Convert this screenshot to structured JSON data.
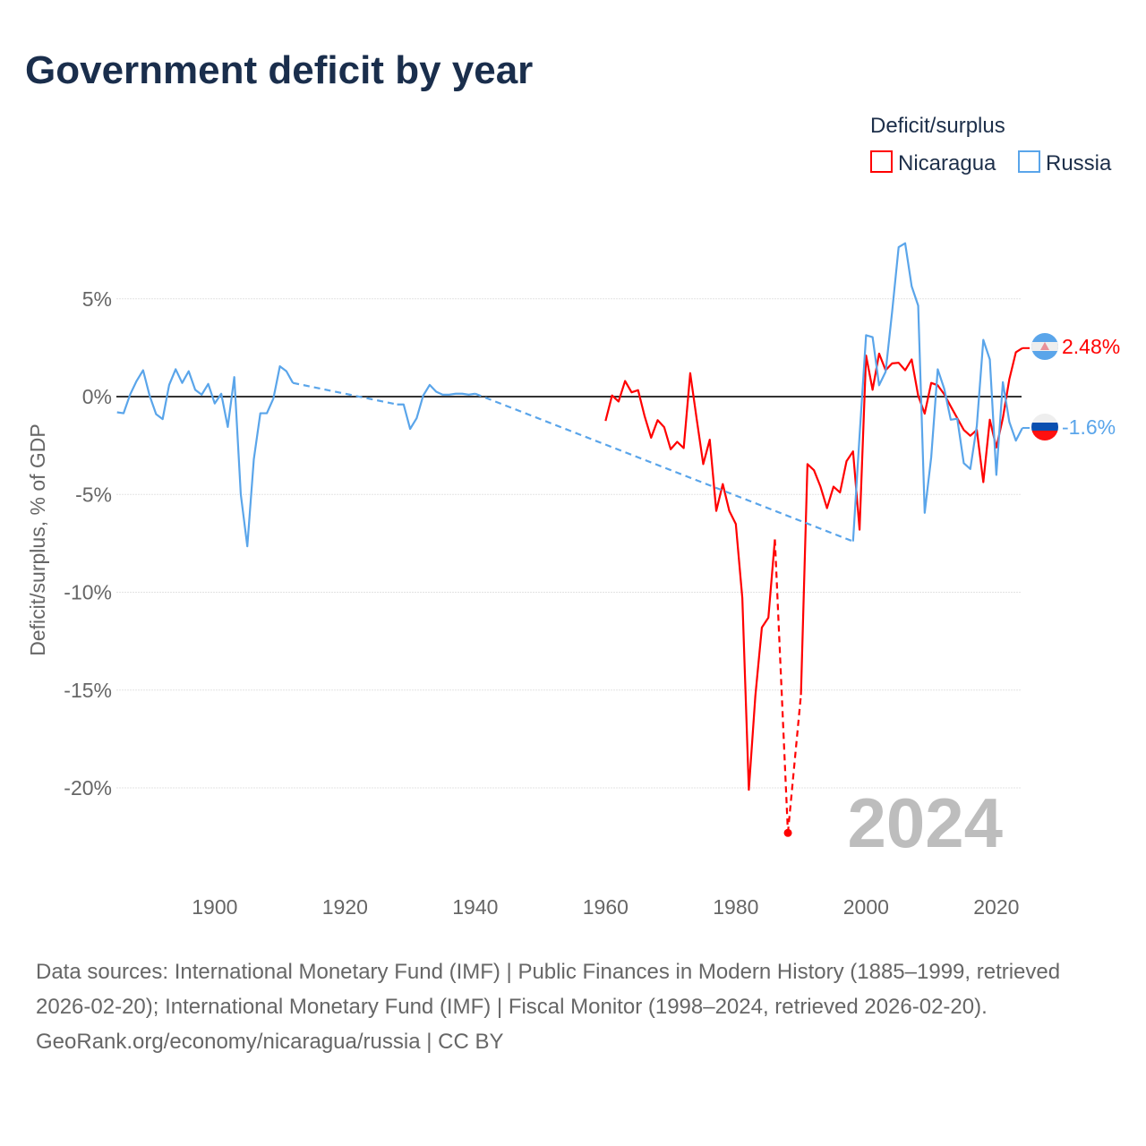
{
  "title": "Government deficit by year",
  "legend": {
    "title": "Deficit/surplus",
    "items": [
      {
        "label": "Nicaragua",
        "color": "#ff0000"
      },
      {
        "label": "Russia",
        "color": "#5aa5ea"
      }
    ]
  },
  "footer": {
    "sources": "Data sources: International Monetary Fund (IMF) | Public Finances in Modern History (1885–1999, retrieved 2026-02-20); International Monetary Fund (IMF) | Fiscal Monitor (1998–2024, retrieved 2026-02-20).",
    "credit": "GeoRank.org/economy/nicaragua/russia | CC BY"
  },
  "chart_data": {
    "type": "line",
    "title": "Government deficit by year",
    "xlabel": "",
    "ylabel": "Deficit/surplus, % of GDP",
    "xlim": [
      1884.9,
      2024.2
    ],
    "ylim": [
      -23.5,
      9
    ],
    "grid": true,
    "legend_position": "top-right",
    "current_year": "2024",
    "x_ticks": [
      {
        "value": 1900,
        "label": "1900"
      },
      {
        "value": 1920,
        "label": "1920"
      },
      {
        "value": 1940,
        "label": "1940"
      },
      {
        "value": 1960,
        "label": "1960"
      },
      {
        "value": 1980,
        "label": "1980"
      },
      {
        "value": 2000,
        "label": "2000"
      },
      {
        "value": 2020,
        "label": "2020"
      }
    ],
    "y_ticks": [
      {
        "value": 5,
        "label": "5%"
      },
      {
        "value": 0,
        "label": "0%"
      },
      {
        "value": -5,
        "label": "-5%"
      },
      {
        "value": -10,
        "label": "-10%"
      },
      {
        "value": -15,
        "label": "-15%"
      },
      {
        "value": -20,
        "label": "-20%"
      }
    ],
    "series": [
      {
        "name": "Nicaragua",
        "color": "#ff0000",
        "end_label": "2.48%",
        "flag": "nicaragua-flag",
        "points": [
          [
            1960,
            -1.24
          ],
          [
            1961,
            0.06
          ],
          [
            1962,
            -0.25
          ],
          [
            1963,
            0.8
          ],
          [
            1964,
            0.22
          ],
          [
            1965,
            0.33
          ],
          [
            1966,
            -1.0
          ],
          [
            1967,
            -2.1
          ],
          [
            1968,
            -1.2
          ],
          [
            1969,
            -1.56
          ],
          [
            1970,
            -2.69
          ],
          [
            1971,
            -2.31
          ],
          [
            1972,
            -2.63
          ],
          [
            1973,
            1.2
          ],
          [
            1974,
            -1.16
          ],
          [
            1975,
            -3.45
          ],
          [
            1976,
            -2.2
          ],
          [
            1977,
            -5.84
          ],
          [
            1978,
            -4.47
          ],
          [
            1979,
            -5.84
          ],
          [
            1980,
            -6.51
          ],
          [
            1981,
            -10.29
          ],
          [
            1982,
            -20.1
          ],
          [
            1983,
            -15.3
          ],
          [
            1984,
            -11.8
          ],
          [
            1985,
            -11.3
          ],
          [
            1986,
            -7.3
          ],
          [
            1988,
            -22.3
          ],
          [
            1990,
            -15.25
          ],
          [
            1991,
            -3.45
          ],
          [
            1992,
            -3.76
          ],
          [
            1993,
            -4.6
          ],
          [
            1994,
            -5.7
          ],
          [
            1995,
            -4.6
          ],
          [
            1996,
            -4.9
          ],
          [
            1997,
            -3.3
          ],
          [
            1998,
            -2.8
          ],
          [
            1999,
            -6.8
          ],
          [
            2000,
            2.1
          ],
          [
            2001,
            0.35
          ],
          [
            2002,
            2.2
          ],
          [
            2003,
            1.35
          ],
          [
            2004,
            1.7
          ],
          [
            2005,
            1.73
          ],
          [
            2006,
            1.35
          ],
          [
            2007,
            1.9
          ],
          [
            2008,
            0.05
          ],
          [
            2009,
            -0.87
          ],
          [
            2010,
            0.7
          ],
          [
            2011,
            0.58
          ],
          [
            2012,
            0.12
          ],
          [
            2013,
            -0.5
          ],
          [
            2014,
            -1.1
          ],
          [
            2015,
            -1.7
          ],
          [
            2016,
            -2.0
          ],
          [
            2017,
            -1.7
          ],
          [
            2018,
            -4.37
          ],
          [
            2019,
            -1.18
          ],
          [
            2020,
            -2.6
          ],
          [
            2021,
            -1.1
          ],
          [
            2022,
            0.9
          ],
          [
            2023,
            2.27
          ],
          [
            2024,
            2.48
          ]
        ]
      },
      {
        "name": "Russia",
        "color": "#5aa5ea",
        "end_label": "-1.6%",
        "flag": "russia-flag",
        "points": [
          [
            1885,
            -0.8
          ],
          [
            1886,
            -0.85
          ],
          [
            1887,
            0.1
          ],
          [
            1888,
            0.8
          ],
          [
            1889,
            1.35
          ],
          [
            1890,
            0.05
          ],
          [
            1891,
            -0.9
          ],
          [
            1892,
            -1.15
          ],
          [
            1893,
            0.6
          ],
          [
            1894,
            1.4
          ],
          [
            1895,
            0.7
          ],
          [
            1896,
            1.3
          ],
          [
            1897,
            0.35
          ],
          [
            1898,
            0.1
          ],
          [
            1899,
            0.65
          ],
          [
            1900,
            -0.35
          ],
          [
            1901,
            0.15
          ],
          [
            1902,
            -1.55
          ],
          [
            1903,
            1.0
          ],
          [
            1904,
            -5.0
          ],
          [
            1905,
            -7.65
          ],
          [
            1906,
            -3.2
          ],
          [
            1907,
            -0.85
          ],
          [
            1908,
            -0.85
          ],
          [
            1909,
            -0.1
          ],
          [
            1910,
            1.55
          ],
          [
            1911,
            1.3
          ],
          [
            1912,
            0.7
          ],
          [
            1928,
            -0.4
          ],
          [
            1929,
            -0.4
          ],
          [
            1930,
            -1.65
          ],
          [
            1931,
            -1.1
          ],
          [
            1932,
            0.05
          ],
          [
            1933,
            0.6
          ],
          [
            1934,
            0.25
          ],
          [
            1935,
            0.1
          ],
          [
            1936,
            0.1
          ],
          [
            1937,
            0.15
          ],
          [
            1938,
            0.15
          ],
          [
            1939,
            0.1
          ],
          [
            1940,
            0.15
          ],
          [
            1998,
            -7.4
          ],
          [
            1999,
            -2.0
          ],
          [
            2000,
            3.14
          ],
          [
            2001,
            3.04
          ],
          [
            2002,
            0.58
          ],
          [
            2003,
            1.27
          ],
          [
            2004,
            4.34
          ],
          [
            2005,
            7.64
          ],
          [
            2006,
            7.84
          ],
          [
            2007,
            5.64
          ],
          [
            2008,
            4.65
          ],
          [
            2009,
            -5.94
          ],
          [
            2010,
            -3.1
          ],
          [
            2011,
            1.4
          ],
          [
            2012,
            0.4
          ],
          [
            2013,
            -1.18
          ],
          [
            2014,
            -1.13
          ],
          [
            2015,
            -3.4
          ],
          [
            2016,
            -3.7
          ],
          [
            2017,
            -1.5
          ],
          [
            2018,
            2.9
          ],
          [
            2019,
            1.9
          ],
          [
            2020,
            -4.0
          ],
          [
            2021,
            0.74
          ],
          [
            2022,
            -1.3
          ],
          [
            2023,
            -2.25
          ],
          [
            2024,
            -1.6
          ]
        ]
      }
    ]
  }
}
